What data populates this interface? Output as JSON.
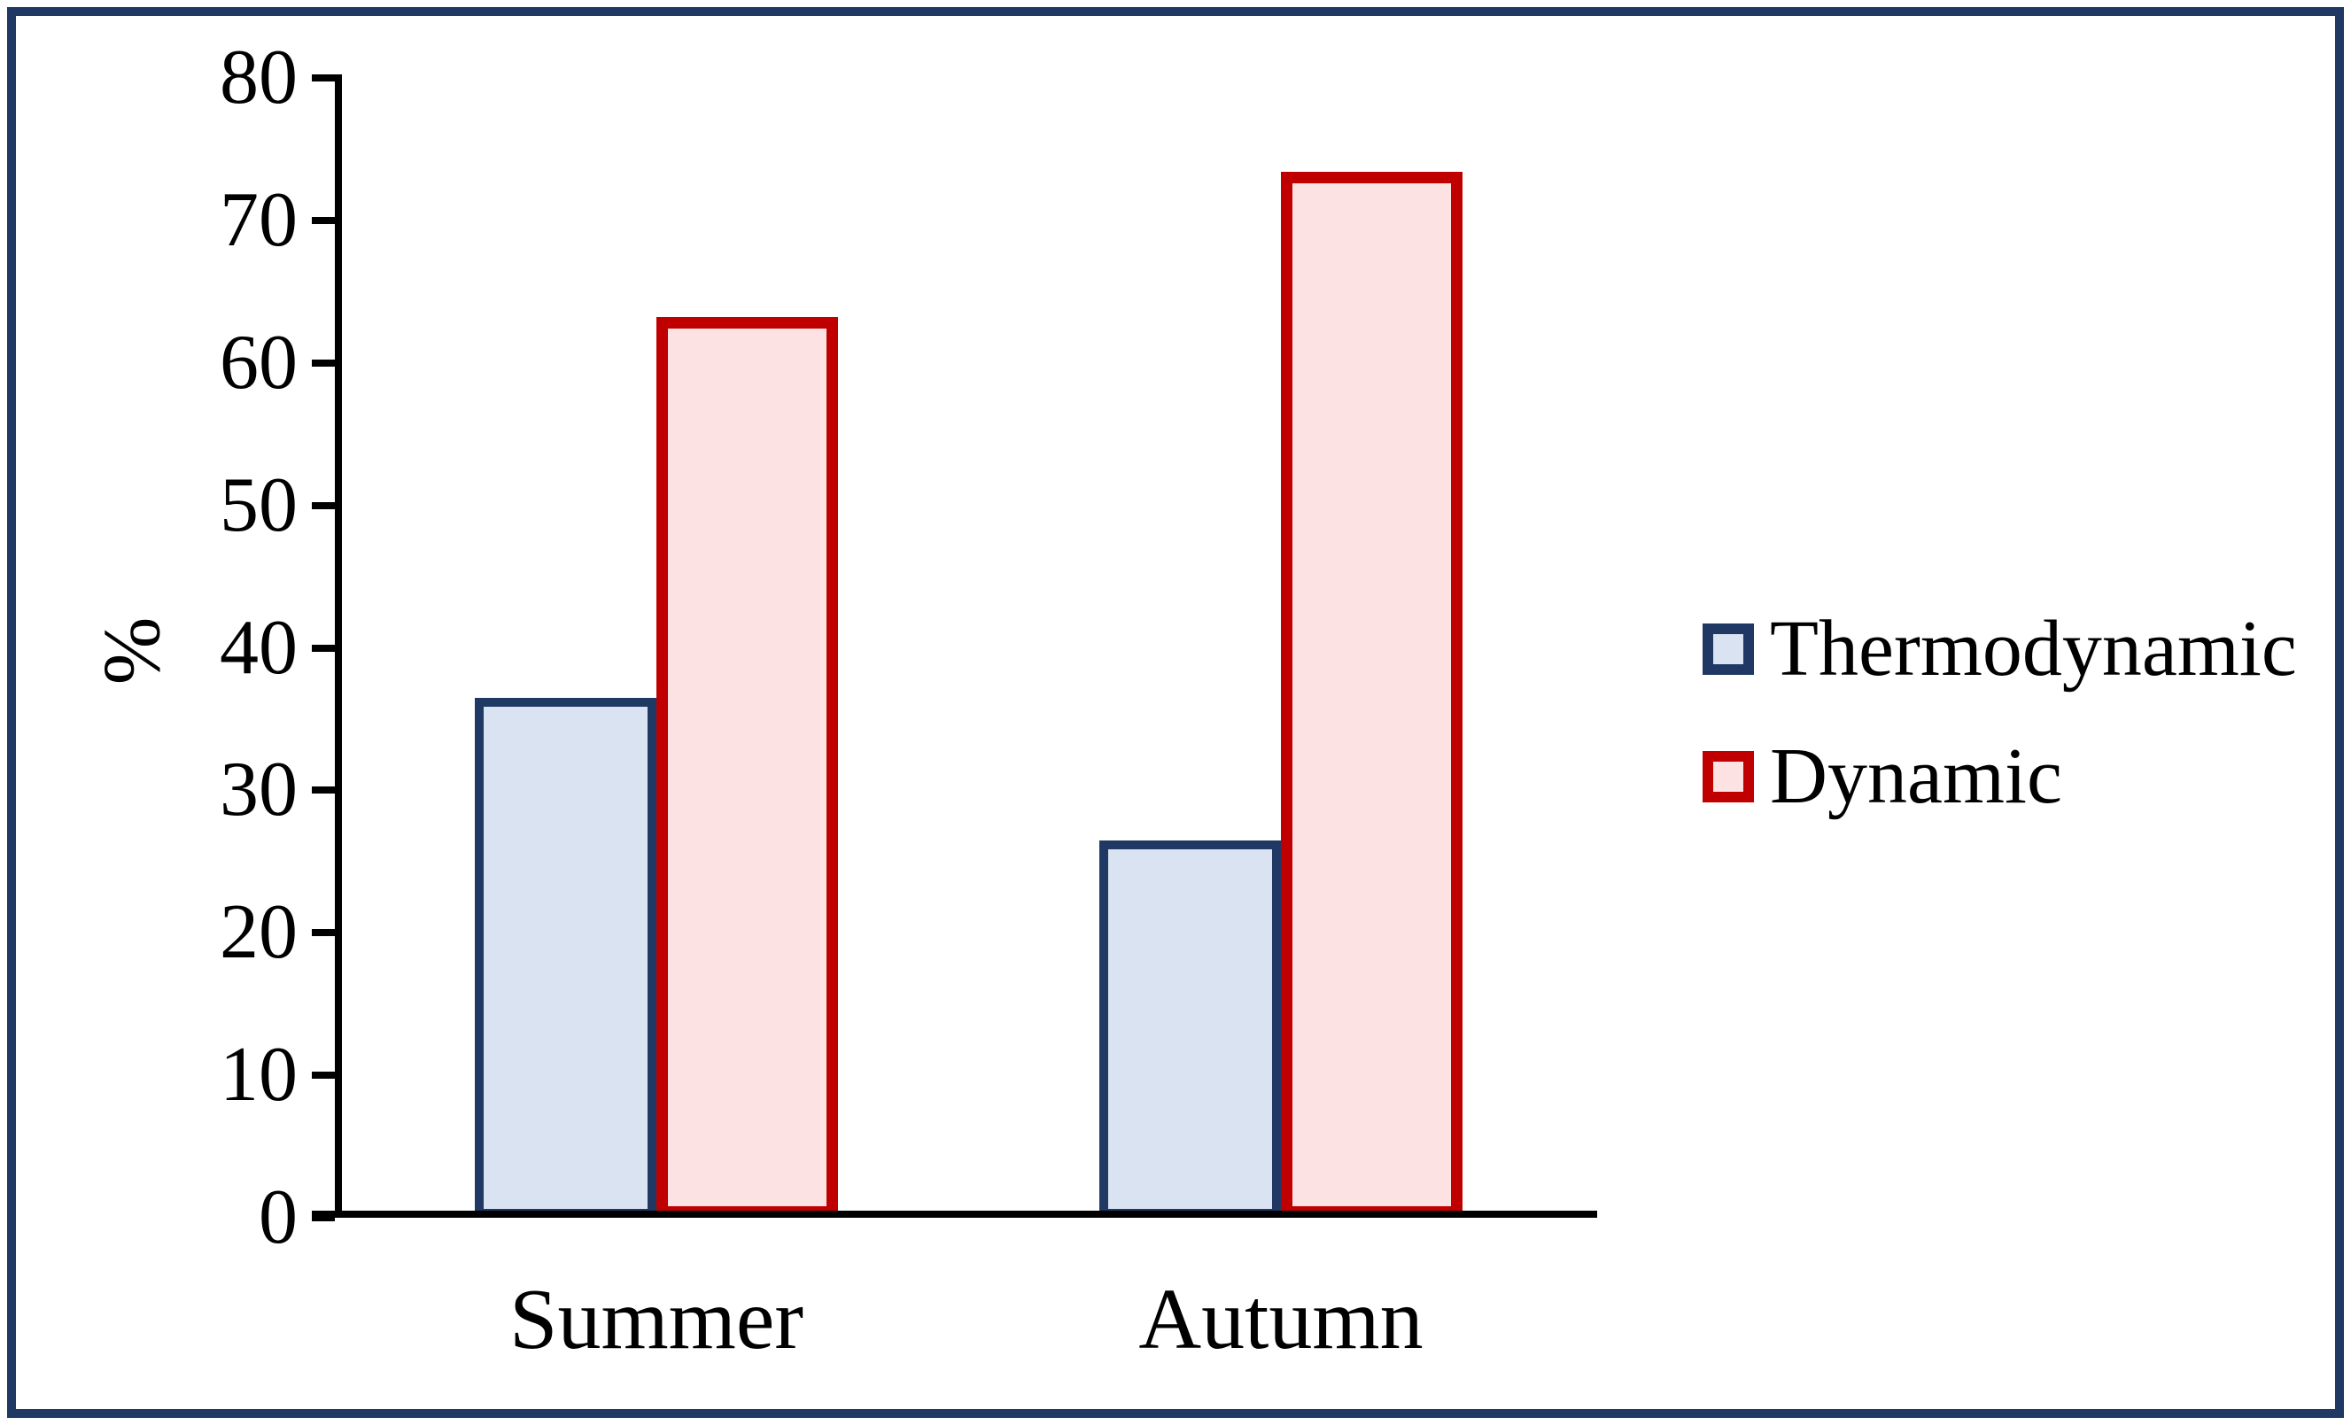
{
  "frame": {
    "border_color": "#1f3864",
    "background": "#ffffff"
  },
  "chart_data": {
    "type": "bar",
    "categories": [
      "Summer",
      "Autumn"
    ],
    "series": [
      {
        "name": "Thermodynamic",
        "values": [
          36.5,
          26.5
        ],
        "fill": "#dae3f2",
        "border": "#1f3864",
        "stroke_width": 10
      },
      {
        "name": "Dynamic",
        "values": [
          63.2,
          73.4
        ],
        "fill": "#fce2e2",
        "border": "#c00000",
        "stroke_width": 13
      }
    ],
    "title": "",
    "xlabel": "",
    "ylabel": "%",
    "ylim": [
      0,
      80
    ],
    "ytick_step": 10,
    "yticks": [
      0,
      10,
      20,
      30,
      40,
      50,
      60,
      70,
      80
    ],
    "grid": false,
    "legend_position": "right",
    "axis_color": "#000000",
    "text_color": "#000000"
  }
}
